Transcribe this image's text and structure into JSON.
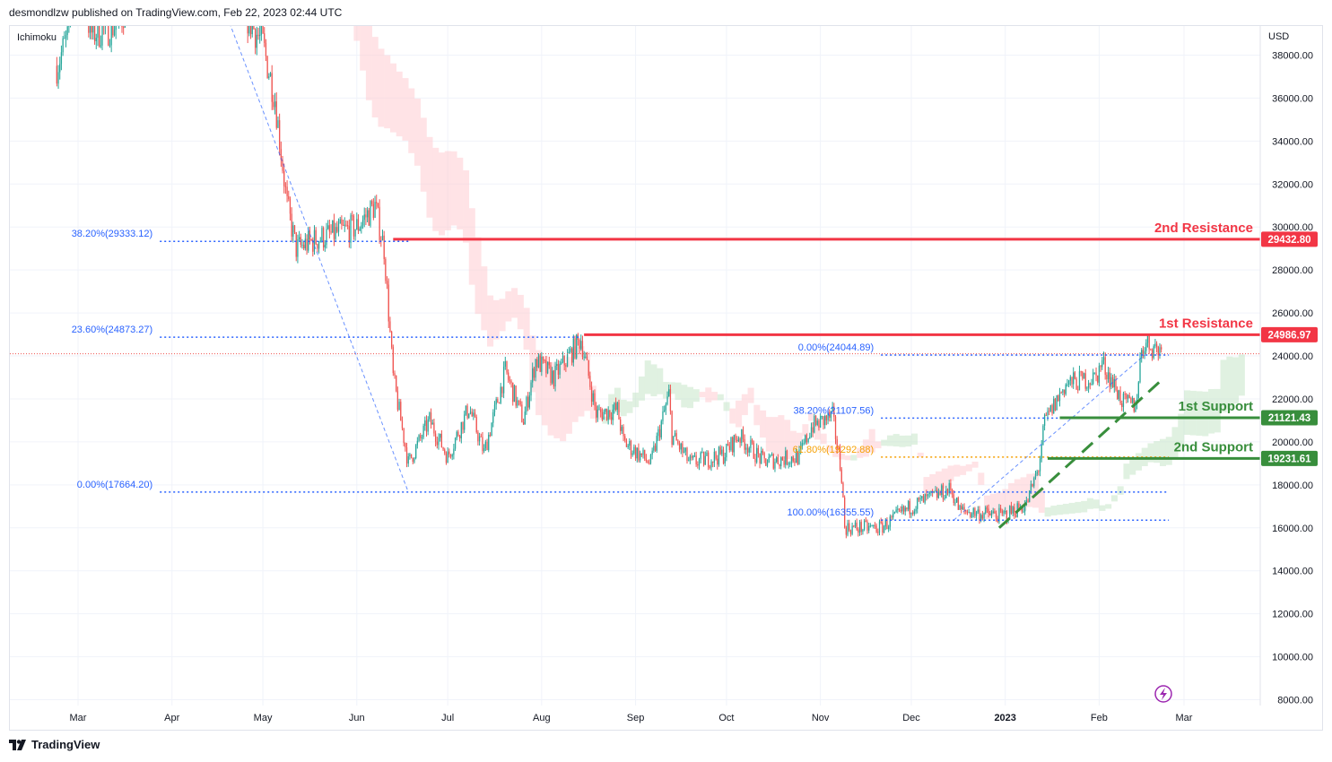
{
  "header": {
    "text": "desmondlzw published on TradingView.com, Feb 22, 2023 02:44 UTC"
  },
  "footer": {
    "brand": "TradingView"
  },
  "colors": {
    "up": "#26a69a",
    "down": "#ef5350",
    "resistance": "#f23645",
    "support": "#388e3c",
    "fib": "#2962ff",
    "fib_golden": "#f59f00",
    "cloud_bull": "#c8e6c9",
    "cloud_bear": "#ffcdd2",
    "grid": "#f0f3fa",
    "axis_text": "#131722"
  },
  "chart_data": {
    "type": "candlestick",
    "symbol_indicator": "Ichimoku",
    "currency": "USD",
    "ylim": [
      7000,
      39500
    ],
    "y_ticks": [
      8000,
      10000,
      12000,
      14000,
      16000,
      18000,
      20000,
      22000,
      24000,
      26000,
      28000,
      30000,
      32000,
      34000,
      36000,
      38000
    ],
    "y_tick_labels": [
      "8000.00",
      "10000.00",
      "12000.00",
      "14000.00",
      "16000.00",
      "18000.00",
      "20000.00",
      "22000.00",
      "24000.00",
      "26000.00",
      "28000.00",
      "30000.00",
      "32000.00",
      "34000.00",
      "36000.00",
      "38000.00"
    ],
    "x_labels": [
      "Mar",
      "Apr",
      "May",
      "Jun",
      "Jul",
      "Aug",
      "Sep",
      "Oct",
      "Nov",
      "Dec",
      "2023",
      "Feb",
      "Mar"
    ],
    "x_label_bold": "2023",
    "price_anchors": [
      [
        "2022-02-22",
        37500
      ],
      [
        "2022-02-26",
        39000
      ],
      [
        "2022-03-01",
        43000
      ],
      [
        "2022-03-05",
        39000
      ],
      [
        "2022-03-15",
        39500
      ],
      [
        "2022-03-28",
        47000
      ],
      [
        "2022-04-10",
        42000
      ],
      [
        "2022-04-25",
        40000
      ],
      [
        "2022-05-01",
        38500
      ],
      [
        "2022-05-05",
        36000
      ],
      [
        "2022-05-09",
        31000
      ],
      [
        "2022-05-12",
        29000
      ],
      [
        "2022-05-20",
        29500
      ],
      [
        "2022-06-01",
        30000
      ],
      [
        "2022-06-07",
        31000
      ],
      [
        "2022-06-10",
        29000
      ],
      [
        "2022-06-13",
        23000
      ],
      [
        "2022-06-18",
        19000
      ],
      [
        "2022-06-25",
        21000
      ],
      [
        "2022-07-01",
        19300
      ],
      [
        "2022-07-08",
        21600
      ],
      [
        "2022-07-13",
        19500
      ],
      [
        "2022-07-20",
        23300
      ],
      [
        "2022-07-26",
        21000
      ],
      [
        "2022-07-30",
        23800
      ],
      [
        "2022-08-05",
        23000
      ],
      [
        "2022-08-11",
        24200
      ],
      [
        "2022-08-14",
        24800
      ],
      [
        "2022-08-19",
        21300
      ],
      [
        "2022-08-26",
        21500
      ],
      [
        "2022-08-28",
        20000
      ],
      [
        "2022-09-06",
        19000
      ],
      [
        "2022-09-12",
        22200
      ],
      [
        "2022-09-13",
        20300
      ],
      [
        "2022-09-19",
        19000
      ],
      [
        "2022-09-30",
        19400
      ],
      [
        "2022-10-05",
        20300
      ],
      [
        "2022-10-13",
        19100
      ],
      [
        "2022-10-25",
        19300
      ],
      [
        "2022-10-29",
        20700
      ],
      [
        "2022-11-05",
        21200
      ],
      [
        "2022-11-08",
        18500
      ],
      [
        "2022-11-09",
        16000
      ],
      [
        "2022-11-21",
        16000
      ],
      [
        "2022-12-01",
        17000
      ],
      [
        "2022-12-14",
        17800
      ],
      [
        "2022-12-17",
        16800
      ],
      [
        "2022-12-31",
        16550
      ],
      [
        "2023-01-08",
        17100
      ],
      [
        "2023-01-12",
        18800
      ],
      [
        "2023-01-14",
        20900
      ],
      [
        "2023-01-21",
        22700
      ],
      [
        "2023-01-31",
        23000
      ],
      [
        "2023-02-02",
        23700
      ],
      [
        "2023-02-09",
        21800
      ],
      [
        "2023-02-13",
        21700
      ],
      [
        "2023-02-15",
        24300
      ],
      [
        "2023-02-16",
        24600
      ],
      [
        "2023-02-21",
        24300
      ]
    ],
    "fib_levels": [
      {
        "label": "38.20%(29333.12)",
        "value": 29333.12,
        "from": "2022-03-28",
        "to": "2022-06-18"
      },
      {
        "label": "23.60%(24873.27)",
        "value": 24873.27,
        "from": "2022-03-28",
        "to": "2022-08-14"
      },
      {
        "label": "0.00%(17664.20)",
        "value": 17664.2,
        "from": "2022-03-28",
        "to": "2023-02-24"
      },
      {
        "label": "0.00%(24044.89)",
        "value": 24044.89,
        "from": "2022-11-21",
        "to": "2023-02-24"
      },
      {
        "label": "38.20%(21107.56)",
        "value": 21107.56,
        "from": "2022-11-21",
        "to": "2023-02-24"
      },
      {
        "label": "61.80%(19292.88)",
        "value": 19292.88,
        "from": "2022-11-21",
        "to": "2023-02-24",
        "golden": true
      },
      {
        "label": "100.00%(16355.55)",
        "value": 16355.55,
        "from": "2022-11-21",
        "to": "2023-02-24"
      }
    ],
    "levels": [
      {
        "name": "2nd Resistance",
        "value": 29432.8,
        "price_label": "29432.80",
        "kind": "resistance",
        "from": "2022-06-13"
      },
      {
        "name": "1st Resistance",
        "value": 24986.97,
        "price_label": "24986.97",
        "kind": "resistance",
        "from": "2022-08-15"
      },
      {
        "name": "1st Support",
        "value": 21121.43,
        "price_label": "21121.43",
        "kind": "support",
        "from": "2023-01-19"
      },
      {
        "name": "2nd Support",
        "value": 19231.61,
        "price_label": "19231.61",
        "kind": "support",
        "from": "2023-01-15"
      }
    ],
    "trendline": {
      "from": [
        "2022-12-30",
        16000
      ],
      "to": [
        "2023-02-21",
        22800
      ]
    },
    "last_price": 24100
  }
}
